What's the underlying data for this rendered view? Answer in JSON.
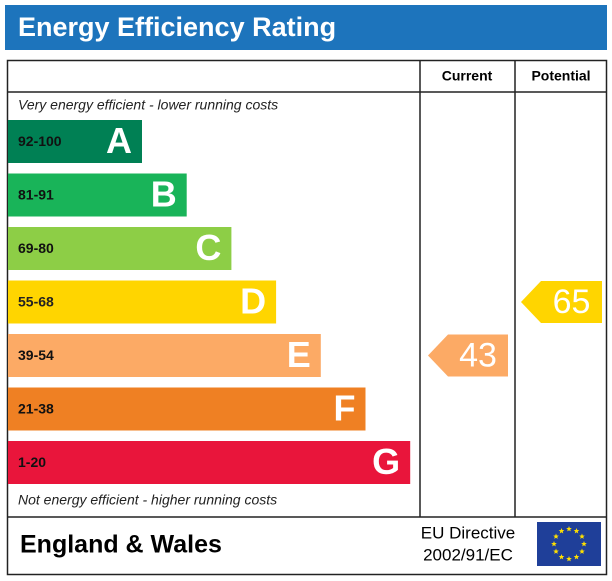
{
  "chart_data": {
    "type": "epc",
    "title": "Energy Efficiency Rating",
    "top_note": "Very energy efficient - lower running costs",
    "bottom_note": "Not energy efficient - higher running costs",
    "bands": [
      {
        "range": "92-100",
        "letter": "A",
        "color": "#008054"
      },
      {
        "range": "81-91",
        "letter": "B",
        "color": "#19b459"
      },
      {
        "range": "69-80",
        "letter": "C",
        "color": "#8dce46"
      },
      {
        "range": "55-68",
        "letter": "D",
        "color": "#ffd500"
      },
      {
        "range": "39-54",
        "letter": "E",
        "color": "#fcaa65"
      },
      {
        "range": "21-38",
        "letter": "F",
        "color": "#ef8023"
      },
      {
        "range": "1-20",
        "letter": "G",
        "color": "#e9153b"
      }
    ],
    "current": {
      "label": "Current",
      "value": 43
    },
    "potential": {
      "label": "Potential",
      "value": 65
    },
    "footer": {
      "region": "England & Wales",
      "directive_line1": "EU Directive",
      "directive_line2": "2002/91/EC"
    }
  }
}
